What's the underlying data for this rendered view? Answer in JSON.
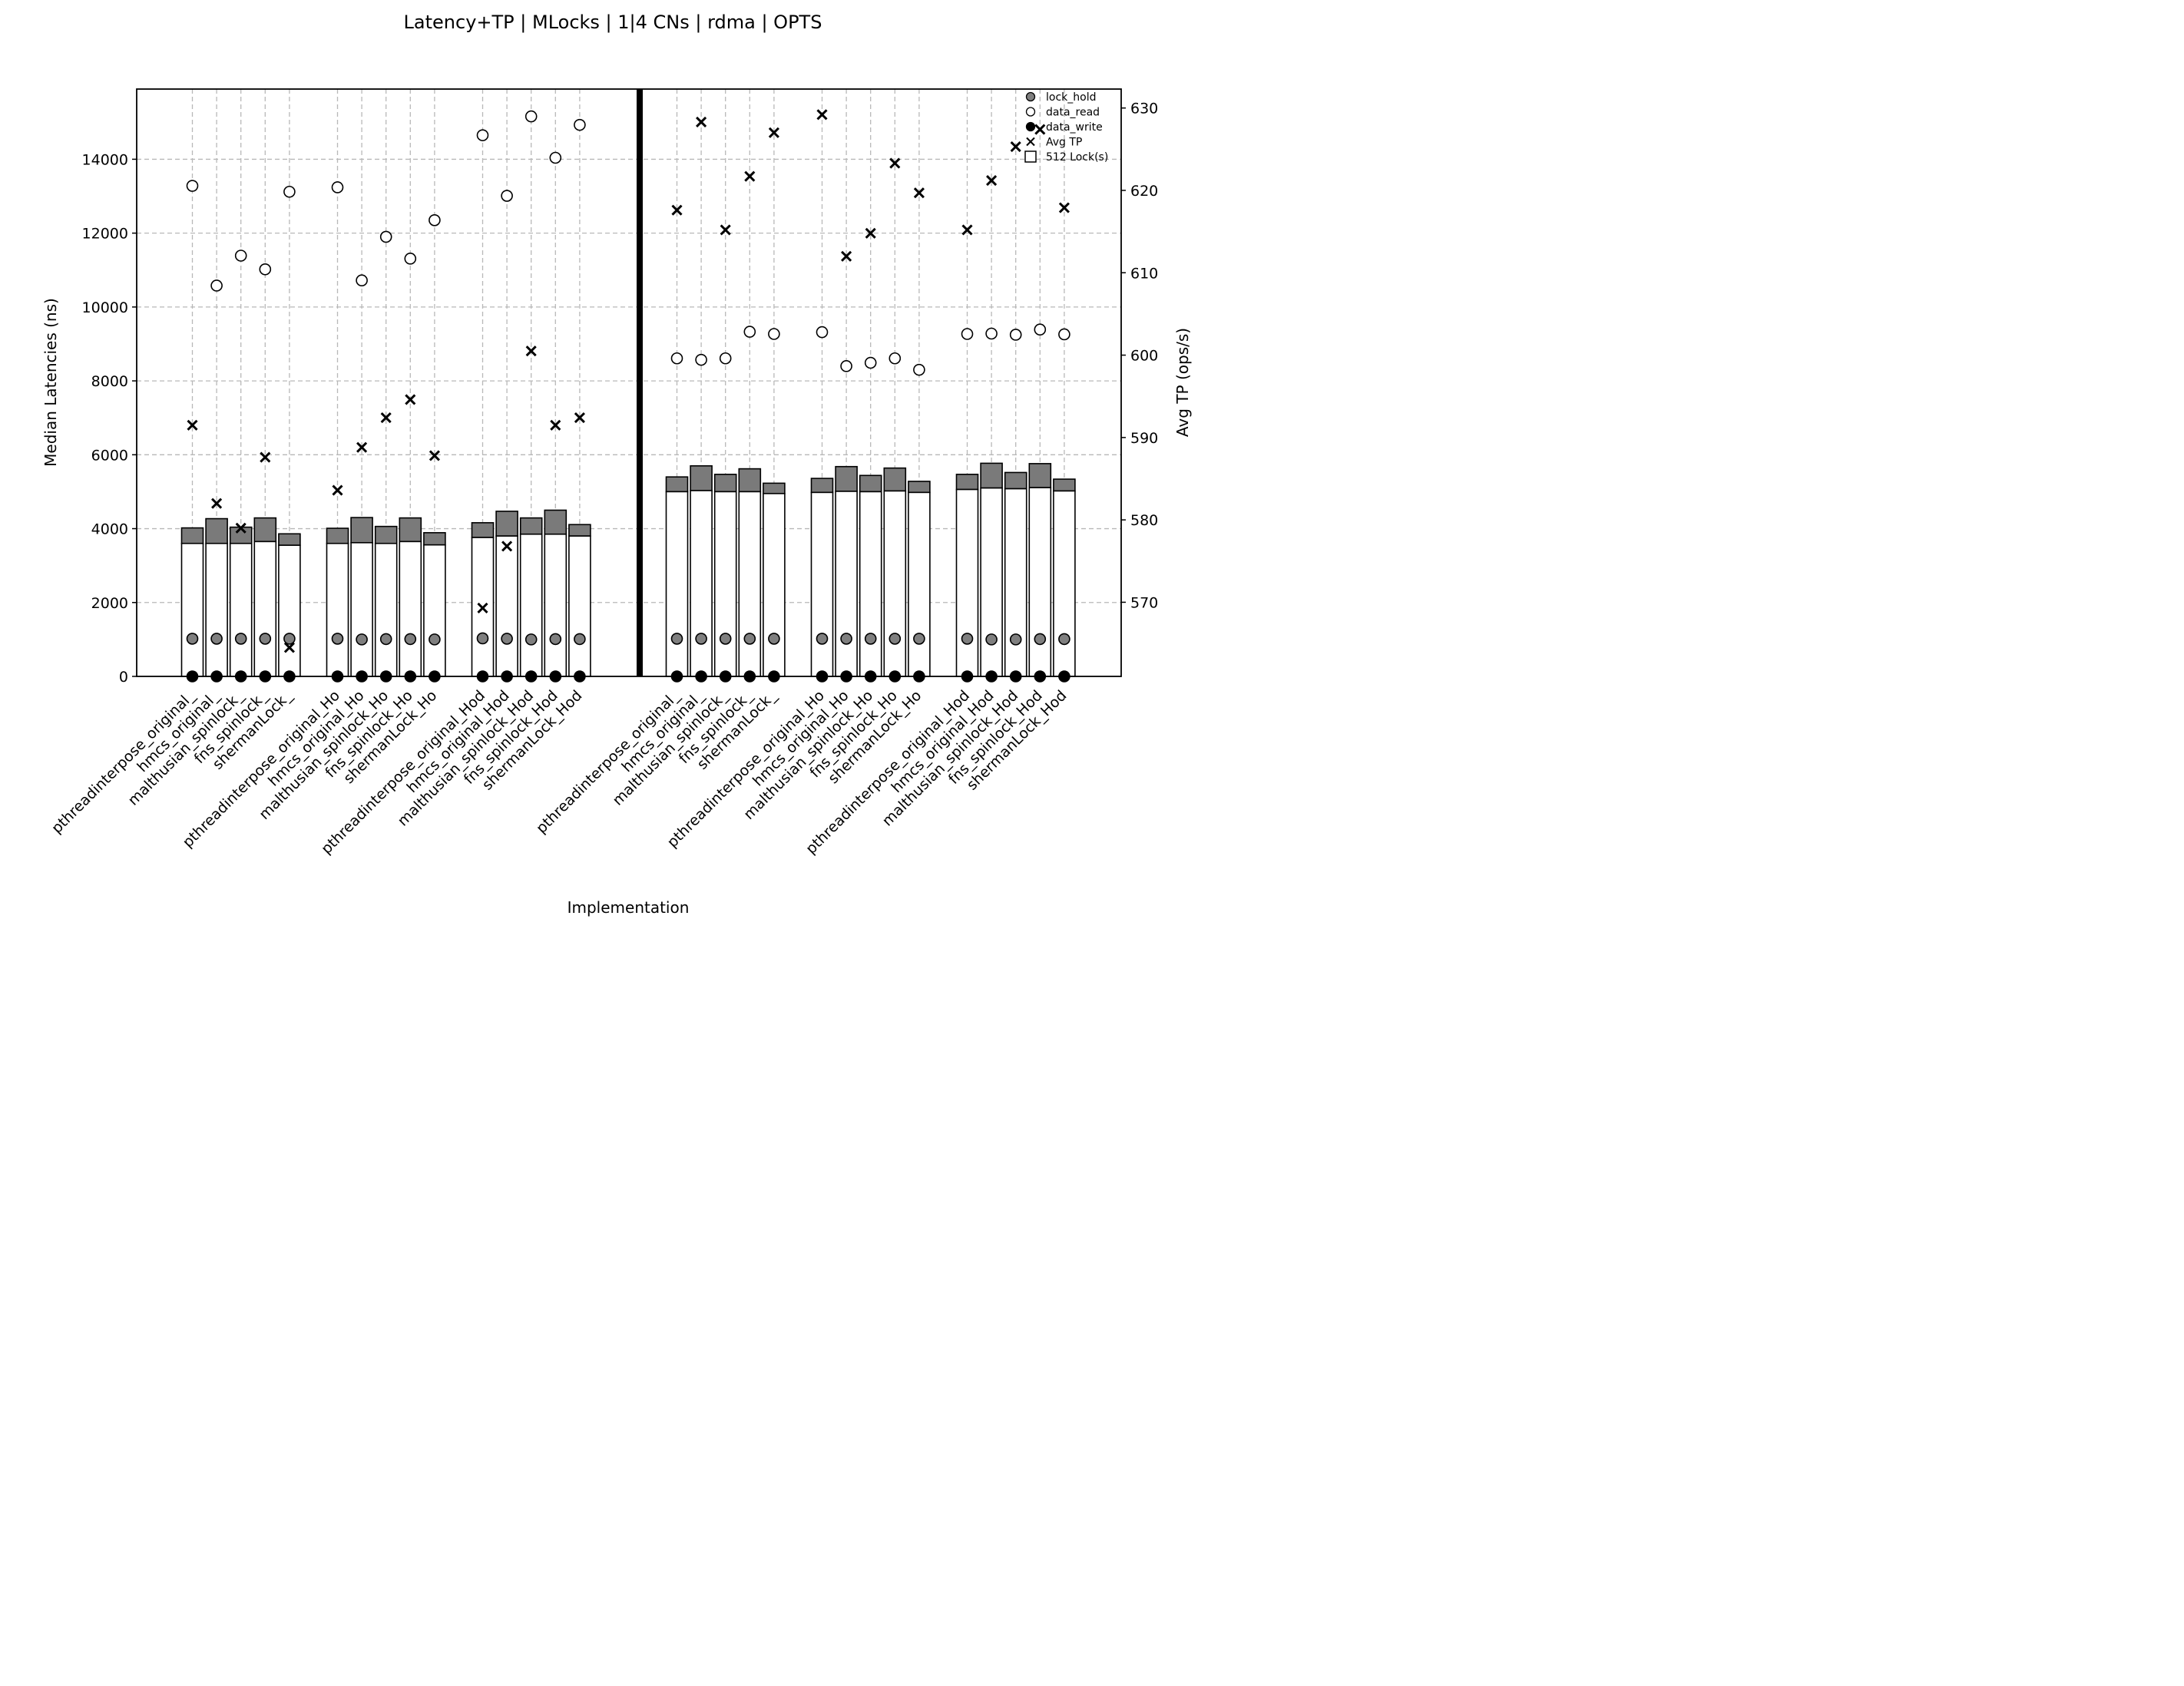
{
  "chart_data": {
    "type": "bar",
    "title": "Latency+TP | MLocks | 1|4 CNs | rdma | OPTS",
    "xlabel": "Implementation",
    "ylabel": "Median Latencies (ns)",
    "y2label": "Avg TP (ops/s)",
    "ylim": [
      0,
      15900
    ],
    "y2lim": [
      561,
      632.3
    ],
    "yticks": [
      0,
      2000,
      4000,
      6000,
      8000,
      10000,
      12000,
      14000
    ],
    "y2ticks": [
      570,
      580,
      590,
      600,
      610,
      620,
      630
    ],
    "grid": true,
    "legend": {
      "placement": "top-right",
      "entries": [
        "lock_hold",
        "data_read",
        "data_write",
        "Avg TP",
        "512 Lock(s)"
      ]
    },
    "categories": [
      "pthreadinterpose_original_",
      "hmcs_original_",
      "malthusian_spinlock_",
      "fns_spinlock_",
      "shermanLock_",
      "pthreadinterpose_original_Ho",
      "hmcs_original_Ho",
      "malthusian_spinlock_Ho",
      "fns_spinlock_Ho",
      "shermanLock_Ho",
      "pthreadinterpose_original_Hod",
      "hmcs_original_Hod",
      "malthusian_spinlock_Hod",
      "fns_spinlock_Hod",
      "shermanLock_Hod",
      "pthreadinterpose_original_",
      "hmcs_original_",
      "malthusian_spinlock_",
      "fns_spinlock_",
      "shermanLock_",
      "pthreadinterpose_original_Ho",
      "hmcs_original_Ho",
      "malthusian_spinlock_Ho",
      "fns_spinlock_Ho",
      "shermanLock_Ho",
      "pthreadinterpose_original_Hod",
      "hmcs_original_Hod",
      "malthusian_spinlock_Hod",
      "fns_spinlock_Hod",
      "shermanLock_Hod"
    ],
    "series": [
      {
        "name": "bar_base",
        "values": [
          3600,
          3600,
          3600,
          3650,
          3550,
          3600,
          3620,
          3600,
          3650,
          3560,
          3760,
          3800,
          3850,
          3850,
          3800,
          5000,
          5030,
          5000,
          5000,
          4950,
          4980,
          5010,
          5000,
          5020,
          4980,
          5060,
          5100,
          5080,
          5110,
          5020
        ]
      },
      {
        "name": "bar_top",
        "values": [
          4020,
          4270,
          4040,
          4290,
          3860,
          4010,
          4300,
          4060,
          4290,
          3890,
          4160,
          4470,
          4290,
          4500,
          4110,
          5400,
          5700,
          5470,
          5620,
          5230,
          5360,
          5680,
          5440,
          5640,
          5280,
          5470,
          5770,
          5520,
          5760,
          5340
        ]
      },
      {
        "name": "lock_hold",
        "values": [
          1020,
          1020,
          1020,
          1020,
          1020,
          1020,
          1000,
          1010,
          1010,
          1000,
          1030,
          1020,
          1000,
          1010,
          1010,
          1020,
          1020,
          1020,
          1020,
          1020,
          1020,
          1020,
          1020,
          1020,
          1020,
          1020,
          1000,
          1000,
          1010,
          1010
        ]
      },
      {
        "name": "data_read",
        "values": [
          13280,
          10580,
          11390,
          11020,
          13120,
          13240,
          10720,
          11900,
          11310,
          12350,
          14650,
          13010,
          15160,
          14040,
          14930,
          8610,
          8570,
          8610,
          9330,
          9270,
          9320,
          8400,
          8490,
          8610,
          8300,
          9270,
          9280,
          9250,
          9390,
          9260
        ]
      },
      {
        "name": "data_write",
        "values": [
          0,
          0,
          0,
          0,
          0,
          0,
          0,
          0,
          0,
          0,
          0,
          0,
          0,
          0,
          0,
          0,
          0,
          0,
          0,
          0,
          0,
          0,
          0,
          0,
          0,
          0,
          0,
          0,
          0,
          0
        ]
      },
      {
        "name": "Avg TP",
        "axis": "right",
        "values": [
          591.5,
          582.0,
          579.0,
          587.6,
          564.5,
          583.6,
          588.8,
          592.4,
          594.6,
          587.8,
          569.3,
          576.8,
          600.5,
          591.5,
          592.4,
          617.6,
          628.3,
          615.2,
          621.7,
          627.0,
          629.2,
          612.0,
          614.8,
          623.3,
          619.7,
          615.2,
          621.2,
          625.3,
          627.4,
          617.9
        ]
      }
    ]
  }
}
